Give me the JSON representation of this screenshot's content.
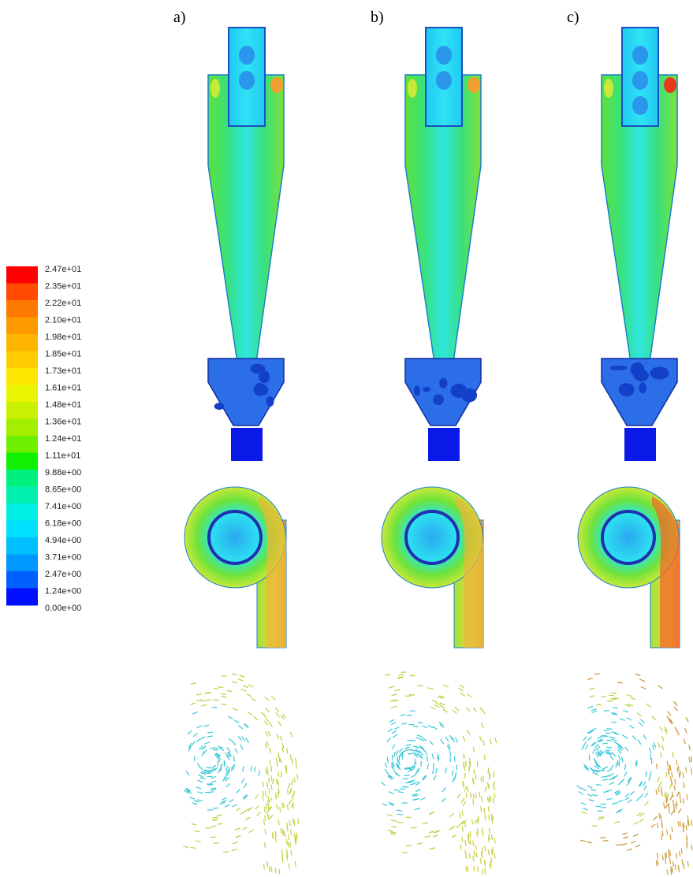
{
  "panels": [
    {
      "label": "a)"
    },
    {
      "label": "b)"
    },
    {
      "label": "c)"
    }
  ],
  "colorbar": {
    "labels": [
      "2.47e+01",
      "2.35e+01",
      "2.22e+01",
      "2.10e+01",
      "1.98e+01",
      "1.85e+01",
      "1.73e+01",
      "1.61e+01",
      "1.48e+01",
      "1.36e+01",
      "1.24e+01",
      "1.11e+01",
      "9.88e+00",
      "8.65e+00",
      "7.41e+00",
      "6.18e+00",
      "4.94e+00",
      "3.71e+00",
      "2.47e+00",
      "1.24e+00",
      "0.00e+00"
    ]
  }
}
